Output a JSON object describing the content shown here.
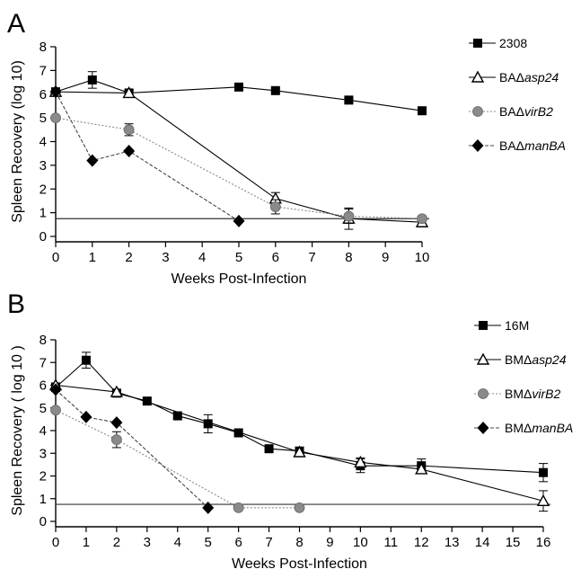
{
  "chart_data": [
    {
      "type": "line",
      "panel_label": "A",
      "xlabel": "Weeks Post-Infection",
      "ylabel": "Spleen Recovery (log 10)",
      "xlim": [
        0,
        10
      ],
      "ylim": [
        0,
        8
      ],
      "xticks": [
        0,
        1,
        2,
        3,
        4,
        5,
        6,
        7,
        8,
        9,
        10
      ],
      "yticks": [
        0,
        1,
        2,
        3,
        4,
        5,
        6,
        7,
        8
      ],
      "detection_limit": 0.75,
      "legend_position": "right",
      "series": [
        {
          "name": "2308",
          "legend_parts": [
            "2308"
          ],
          "marker": "square-filled",
          "line": "solid",
          "x": [
            0,
            1,
            2,
            5,
            6,
            8,
            10
          ],
          "y": [
            6.1,
            6.6,
            6.05,
            6.3,
            6.15,
            5.75,
            5.3
          ],
          "err": [
            0.1,
            0.35,
            0.1,
            0.1,
            0.1,
            0.1,
            0.1
          ]
        },
        {
          "name": "BAΔasp24",
          "legend_parts": [
            "BAΔ",
            "asp24"
          ],
          "marker": "triangle-open",
          "line": "solid",
          "x": [
            0,
            2,
            6,
            8,
            10
          ],
          "y": [
            6.1,
            6.05,
            1.6,
            0.75,
            0.6
          ],
          "err": [
            0.1,
            0.1,
            0.25,
            0.45,
            0.2
          ]
        },
        {
          "name": "BAΔvirB2",
          "legend_parts": [
            "BAΔ",
            "virB2"
          ],
          "marker": "circle-gray",
          "line": "dotted",
          "x": [
            0,
            2,
            6,
            8,
            10
          ],
          "y": [
            5.0,
            4.5,
            1.25,
            0.85,
            0.75
          ],
          "err": [
            0.1,
            0.25,
            0.3,
            0.3,
            0.1
          ]
        },
        {
          "name": "BAΔmanBA",
          "legend_parts": [
            "BAΔ",
            "manBA"
          ],
          "marker": "diamond-filled",
          "line": "dashed",
          "x": [
            0,
            1,
            2,
            5
          ],
          "y": [
            6.1,
            3.2,
            3.6,
            0.65
          ],
          "err": [
            0,
            0,
            0,
            0
          ]
        }
      ]
    },
    {
      "type": "line",
      "panel_label": "B",
      "xlabel": "Weeks Post-Infection",
      "ylabel": "Spleen Recovery ( log 10 )",
      "xlim": [
        0,
        16
      ],
      "ylim": [
        0,
        8
      ],
      "xticks": [
        0,
        1,
        2,
        3,
        4,
        5,
        6,
        7,
        8,
        9,
        10,
        11,
        12,
        13,
        14,
        15,
        16
      ],
      "yticks": [
        0,
        1,
        2,
        3,
        4,
        5,
        6,
        7,
        8
      ],
      "detection_limit": 0.75,
      "legend_position": "right",
      "series": [
        {
          "name": "16M",
          "legend_parts": [
            "16M"
          ],
          "marker": "square-filled",
          "line": "solid",
          "x": [
            0,
            1,
            2,
            3,
            4,
            5,
            6,
            7,
            8,
            10,
            12,
            16
          ],
          "y": [
            5.9,
            7.1,
            5.65,
            5.3,
            4.65,
            4.3,
            3.9,
            3.2,
            3.1,
            2.45,
            2.45,
            2.15
          ],
          "err": [
            0.1,
            0.35,
            0.1,
            0.1,
            0.1,
            0.4,
            0.1,
            0.1,
            0.1,
            0.3,
            0.3,
            0.4
          ]
        },
        {
          "name": "BMΔasp24",
          "legend_parts": [
            "BMΔ",
            "asp24"
          ],
          "marker": "triangle-open",
          "line": "solid",
          "x": [
            0,
            2,
            8,
            10,
            12,
            16
          ],
          "y": [
            6.0,
            5.7,
            3.05,
            2.6,
            2.3,
            0.9
          ],
          "err": [
            0.1,
            0.1,
            0.1,
            0.2,
            0.2,
            0.45
          ]
        },
        {
          "name": "BMΔvirB2",
          "legend_parts": [
            "BMΔ",
            "virB2"
          ],
          "marker": "circle-gray",
          "line": "dotted",
          "x": [
            0,
            2,
            6,
            8
          ],
          "y": [
            4.9,
            3.6,
            0.6,
            0.6
          ],
          "err": [
            0.1,
            0.35,
            0,
            0
          ]
        },
        {
          "name": "BMΔmanBA",
          "legend_parts": [
            "BMΔ",
            "manBA"
          ],
          "marker": "diamond-filled",
          "line": "dashed",
          "x": [
            0,
            1,
            2,
            5
          ],
          "y": [
            5.8,
            4.6,
            4.35,
            0.6
          ],
          "err": [
            0,
            0,
            0,
            0
          ]
        }
      ]
    }
  ]
}
